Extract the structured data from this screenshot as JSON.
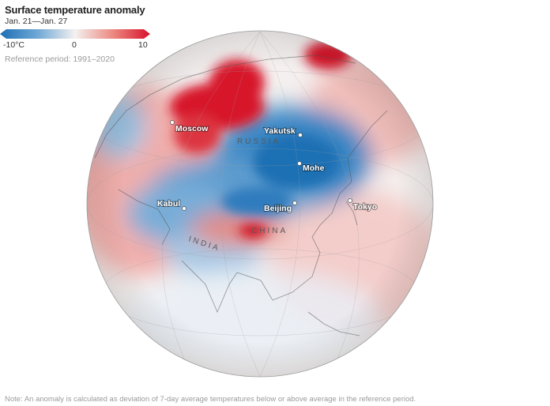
{
  "header": {
    "title": "Surface temperature anomaly",
    "dates": "Jan. 21—Jan. 27"
  },
  "legend": {
    "min_label": "-10°C",
    "mid_label": "0",
    "max_label": "10",
    "cold_color": "#1d6fb4",
    "warm_color": "#d7132b"
  },
  "reference": "Reference period: 1991–2020",
  "cities": {
    "moscow": "Moscow",
    "yakutsk": "Yakutsk",
    "mohe": "Mohe",
    "kabul": "Kabul",
    "beijing": "Beijing",
    "tokyo": "Tokyo"
  },
  "countries": {
    "russia": "RUSSIA",
    "china": "CHINA",
    "india": "INDIA"
  },
  "note": "Note: An anomaly is calculated as deviation of 7-day average temperatures below or above average in the reference period."
}
